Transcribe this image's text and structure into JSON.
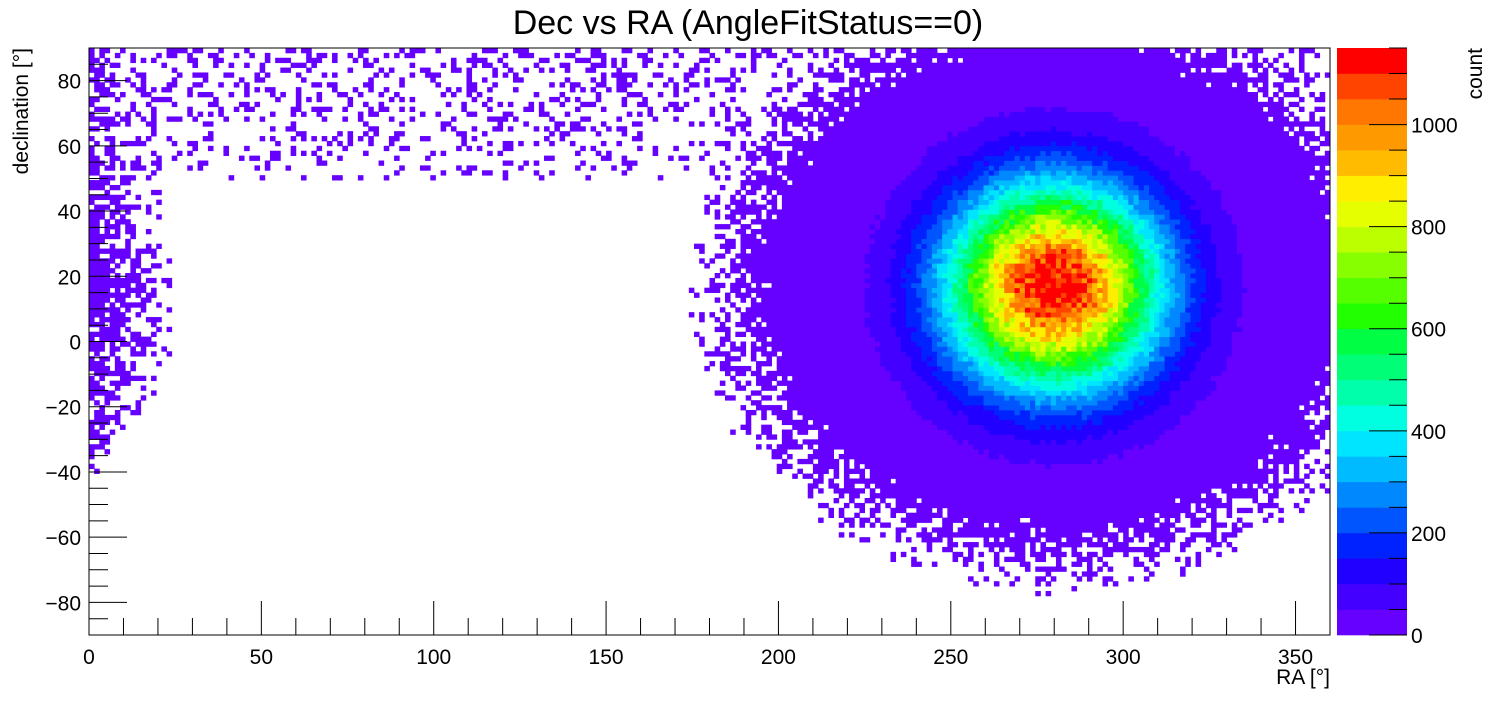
{
  "chart_data": {
    "type": "heatmap",
    "title": "Dec vs RA (AngleFitStatus==0)",
    "xlabel": "RA [°]",
    "ylabel": "declination [°]",
    "zlabel": "count",
    "xlim": [
      0,
      360
    ],
    "ylim": [
      -90,
      90
    ],
    "zlim": [
      0,
      1150
    ],
    "x_ticks": [
      0,
      50,
      100,
      150,
      200,
      250,
      300,
      350
    ],
    "y_ticks": [
      -80,
      -60,
      -40,
      -20,
      0,
      20,
      40,
      60,
      80
    ],
    "z_ticks": [
      0,
      200,
      400,
      600,
      800,
      1000
    ],
    "x_tick_labels": [
      "0",
      "50",
      "100",
      "150",
      "200",
      "250",
      "300",
      "350"
    ],
    "y_tick_labels": [
      "−80",
      "−60",
      "−40",
      "−20",
      "0",
      "20",
      "40",
      "60",
      "80"
    ],
    "z_tick_labels": [
      "0",
      "200",
      "400",
      "600",
      "800",
      "1000"
    ],
    "grid": false,
    "colorbar": "right",
    "peak": {
      "ra": 280,
      "dec": 17,
      "count": 1150
    },
    "palette": [
      "#6600ff",
      "#4400ff",
      "#2200ff",
      "#0022ff",
      "#0055ff",
      "#0088ff",
      "#00bbff",
      "#00e5ff",
      "#00ffe0",
      "#00ffaa",
      "#00ff77",
      "#00ff44",
      "#22ff00",
      "#55ff00",
      "#88ff00",
      "#bbff00",
      "#e5ff00",
      "#ffee00",
      "#ffbb00",
      "#ff9900",
      "#ff7700",
      "#ff4400",
      "#ff0000"
    ],
    "colors": {
      "axis": "#000000",
      "background": "#ffffff"
    }
  }
}
